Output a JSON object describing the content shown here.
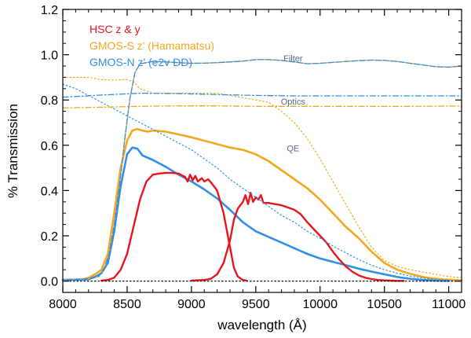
{
  "chart_data": {
    "type": "line",
    "xlabel": "wavelength (Å)",
    "ylabel": "% Transmission",
    "xlim": [
      8000,
      11100
    ],
    "ylim": [
      -0.05,
      1.2
    ],
    "xticks": [
      8000,
      8500,
      9000,
      9500,
      10000,
      10500,
      11000
    ],
    "yticks": [
      0.0,
      0.2,
      0.4,
      0.6,
      0.8,
      1.0,
      1.2
    ],
    "ytick_labels": [
      "0.0",
      "0.2",
      "0.4",
      "0.6",
      "0.8",
      "1.0",
      "1.2"
    ],
    "legend_position": "top-left",
    "grid": false,
    "colors": {
      "hsc": "#e8141c",
      "gmos_s": "#f5a61e",
      "gmos_n": "#2f8fe8",
      "annotation": "#5a6b8c",
      "zero": "#000000"
    },
    "legend": [
      {
        "label": "HSC z & y",
        "color": "#e8141c"
      },
      {
        "label": "GMOS-S z' (Hamamatsu)",
        "color": "#f5a61e"
      },
      {
        "label": "GMOS-N z' (e2v DD)",
        "color": "#2f8fe8"
      }
    ],
    "annotations": [
      {
        "text": "Filter",
        "x": 9790,
        "y": 0.985
      },
      {
        "text": "Optics",
        "x": 9790,
        "y": 0.793
      },
      {
        "text": "QE",
        "x": 9790,
        "y": 0.587
      }
    ],
    "series": [
      {
        "color": "#f5a61e",
        "style": "solid",
        "width": 2.6,
        "x": [
          8000,
          8150,
          8200,
          8250,
          8300,
          8350,
          8400,
          8450,
          8500,
          8540,
          8580,
          8620,
          8660,
          8700,
          8800,
          8900,
          9000,
          9100,
          9200,
          9300,
          9400,
          9500,
          9600,
          9700,
          9800,
          9900,
          10000,
          10100,
          10200,
          10300,
          10400,
          10500,
          10600,
          10700,
          10800,
          10900,
          11000,
          11100
        ],
        "y": [
          0.005,
          0.007,
          0.015,
          0.03,
          0.05,
          0.12,
          0.3,
          0.5,
          0.62,
          0.665,
          0.672,
          0.665,
          0.66,
          0.665,
          0.66,
          0.648,
          0.635,
          0.62,
          0.605,
          0.59,
          0.58,
          0.56,
          0.53,
          0.49,
          0.45,
          0.41,
          0.36,
          0.3,
          0.24,
          0.19,
          0.13,
          0.08,
          0.05,
          0.032,
          0.018,
          0.01,
          0.006,
          0.003
        ]
      },
      {
        "color": "#2f8fe8",
        "style": "solid",
        "width": 2.6,
        "x": [
          8000,
          8200,
          8250,
          8300,
          8350,
          8400,
          8450,
          8500,
          8540,
          8580,
          8620,
          8700,
          8800,
          8900,
          9000,
          9100,
          9200,
          9300,
          9400,
          9500,
          9600,
          9700,
          9800,
          9900,
          10000,
          10100,
          10200,
          10300,
          10400,
          10500,
          10600,
          10700,
          10800,
          10900,
          11000
        ],
        "y": [
          0.005,
          0.008,
          0.018,
          0.035,
          0.08,
          0.22,
          0.42,
          0.56,
          0.59,
          0.585,
          0.555,
          0.535,
          0.505,
          0.47,
          0.44,
          0.405,
          0.365,
          0.315,
          0.26,
          0.22,
          0.195,
          0.17,
          0.145,
          0.12,
          0.1,
          0.085,
          0.07,
          0.055,
          0.042,
          0.03,
          0.018,
          0.01,
          0.005,
          0.002,
          0.001
        ]
      },
      {
        "color": "#e8141c",
        "style": "solid",
        "width": 2.4,
        "x": [
          8300,
          8350,
          8400,
          8450,
          8500,
          8550,
          8600,
          8650,
          8700,
          8750,
          8800,
          8850,
          8900,
          8950,
          8970,
          8990,
          9010,
          9030,
          9050,
          9080,
          9100,
          9130,
          9160,
          9200,
          9250,
          9300,
          9330,
          9360,
          9400,
          9430
        ],
        "y": [
          0.002,
          0.005,
          0.015,
          0.05,
          0.12,
          0.24,
          0.36,
          0.44,
          0.47,
          0.475,
          0.478,
          0.478,
          0.475,
          0.46,
          0.44,
          0.47,
          0.445,
          0.465,
          0.44,
          0.455,
          0.44,
          0.45,
          0.43,
          0.4,
          0.3,
          0.15,
          0.06,
          0.02,
          0.005,
          0.002
        ]
      },
      {
        "color": "#e8141c",
        "style": "solid",
        "width": 2.4,
        "x": [
          9000,
          9100,
          9150,
          9200,
          9250,
          9300,
          9330,
          9360,
          9400,
          9420,
          9440,
          9460,
          9480,
          9500,
          9520,
          9540,
          9560,
          9600,
          9650,
          9700,
          9750,
          9800,
          9850,
          9900,
          10000,
          10050,
          10100,
          10150,
          10200,
          10250,
          10300,
          10350,
          10400,
          10450,
          10500,
          10550,
          10600,
          10650
        ],
        "y": [
          0.002,
          0.005,
          0.01,
          0.03,
          0.08,
          0.18,
          0.27,
          0.32,
          0.35,
          0.38,
          0.34,
          0.39,
          0.35,
          0.37,
          0.36,
          0.38,
          0.345,
          0.345,
          0.34,
          0.335,
          0.325,
          0.315,
          0.295,
          0.26,
          0.2,
          0.17,
          0.13,
          0.095,
          0.065,
          0.042,
          0.025,
          0.015,
          0.009,
          0.005,
          0.003,
          0.002,
          0.001,
          0.001
        ]
      },
      {
        "color": "#f5a61e",
        "style": "dotted",
        "width": 1.2,
        "x": [
          8000,
          8200,
          8300,
          8400,
          8500,
          8550,
          8600,
          8700,
          8800,
          8900,
          9000,
          9100,
          9200,
          9300,
          9400,
          9500,
          9600,
          9700,
          9800,
          9900,
          10000,
          10100,
          10200,
          10300,
          10400,
          10500,
          10600,
          10700,
          10800,
          10900,
          11000,
          11100
        ],
        "y": [
          0.9,
          0.9,
          0.89,
          0.888,
          0.89,
          0.88,
          0.85,
          0.83,
          0.83,
          0.83,
          0.83,
          0.83,
          0.83,
          0.82,
          0.81,
          0.8,
          0.79,
          0.75,
          0.7,
          0.63,
          0.54,
          0.44,
          0.34,
          0.24,
          0.15,
          0.09,
          0.065,
          0.05,
          0.04,
          0.03,
          0.02,
          0.015
        ]
      },
      {
        "color": "#2f8fe8",
        "style": "dotted",
        "width": 1.2,
        "x": [
          8000,
          8100,
          8200,
          8300,
          8400,
          8500,
          8600,
          8700,
          8800,
          8900,
          9000,
          9100,
          9200,
          9300,
          9400,
          9500,
          9600,
          9700,
          9800,
          9900,
          10000,
          10100,
          10200,
          10300,
          10400,
          10500,
          10600,
          10700,
          10800,
          10900,
          11000
        ],
        "y": [
          0.87,
          0.85,
          0.82,
          0.79,
          0.76,
          0.73,
          0.7,
          0.67,
          0.64,
          0.61,
          0.58,
          0.54,
          0.5,
          0.45,
          0.41,
          0.37,
          0.33,
          0.29,
          0.26,
          0.22,
          0.19,
          0.155,
          0.125,
          0.095,
          0.07,
          0.05,
          0.035,
          0.022,
          0.013,
          0.007,
          0.003
        ]
      },
      {
        "color": "#f5a61e",
        "style": "dashdot",
        "width": 1.3,
        "x": [
          8000,
          8300,
          8600,
          8900,
          9200,
          9500,
          9800,
          10100,
          10400,
          10700,
          11000,
          11100
        ],
        "y": [
          0.765,
          0.768,
          0.772,
          0.774,
          0.774,
          0.772,
          0.772,
          0.772,
          0.772,
          0.772,
          0.773,
          0.773
        ]
      },
      {
        "color": "#2f8fe8",
        "style": "dashdot",
        "width": 1.3,
        "x": [
          8000,
          8300,
          8600,
          8900,
          9200,
          9500,
          9800,
          10100,
          10400,
          10700,
          11000,
          11100
        ],
        "y": [
          0.812,
          0.822,
          0.83,
          0.828,
          0.824,
          0.82,
          0.818,
          0.818,
          0.818,
          0.818,
          0.818,
          0.818
        ]
      },
      {
        "color": "#f5a61e",
        "style": "dashed",
        "width": 1.3,
        "x": [
          8000,
          8200,
          8280,
          8320,
          8360,
          8400,
          8440,
          8480,
          8520,
          8560,
          8600,
          8650,
          8700,
          8800,
          8900,
          9000,
          9100,
          9200,
          9300,
          9400,
          9500,
          9600,
          9700,
          9800,
          9900,
          10000,
          10100,
          10200,
          10300,
          10400,
          10500,
          10600,
          10700,
          10800,
          10900,
          11000,
          11100
        ],
        "y": [
          0.005,
          0.01,
          0.02,
          0.05,
          0.12,
          0.25,
          0.42,
          0.62,
          0.8,
          0.92,
          0.96,
          0.965,
          0.97,
          0.968,
          0.965,
          0.962,
          0.963,
          0.965,
          0.968,
          0.972,
          0.978,
          0.978,
          0.975,
          0.968,
          0.96,
          0.962,
          0.966,
          0.97,
          0.974,
          0.976,
          0.975,
          0.97,
          0.962,
          0.955,
          0.947,
          0.945,
          0.95
        ]
      },
      {
        "color": "#2f8fe8",
        "style": "dashed",
        "width": 1.3,
        "dashOffset": 5,
        "x": [
          8000,
          8200,
          8280,
          8320,
          8360,
          8400,
          8440,
          8480,
          8520,
          8560,
          8600,
          8650,
          8700,
          8800,
          8900,
          9000,
          9100,
          9200,
          9300,
          9400,
          9500,
          9600,
          9700,
          9800,
          9900,
          10000,
          10100,
          10200,
          10300,
          10400,
          10500,
          10600,
          10700,
          10800,
          10900,
          11000,
          11100
        ],
        "y": [
          0.005,
          0.01,
          0.02,
          0.05,
          0.12,
          0.25,
          0.42,
          0.62,
          0.8,
          0.92,
          0.96,
          0.965,
          0.97,
          0.968,
          0.965,
          0.962,
          0.963,
          0.965,
          0.968,
          0.972,
          0.978,
          0.978,
          0.975,
          0.968,
          0.96,
          0.962,
          0.966,
          0.97,
          0.974,
          0.976,
          0.975,
          0.97,
          0.962,
          0.955,
          0.947,
          0.945,
          0.95
        ]
      },
      {
        "color": "#000000",
        "style": "dotted",
        "width": 1.2,
        "x": [
          8000,
          11100
        ],
        "y": [
          0.0,
          0.0
        ]
      }
    ]
  }
}
